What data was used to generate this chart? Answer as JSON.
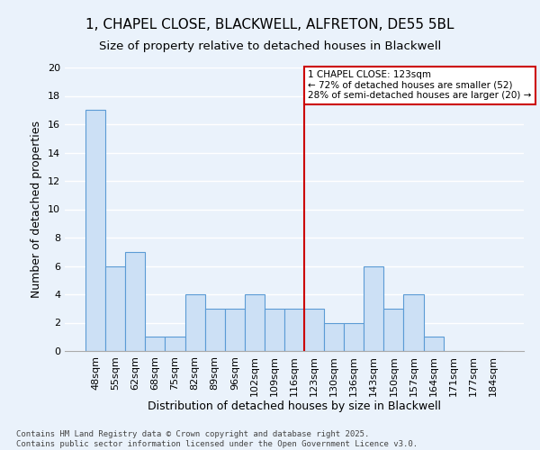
{
  "title_line1": "1, CHAPEL CLOSE, BLACKWELL, ALFRETON, DE55 5BL",
  "title_line2": "Size of property relative to detached houses in Blackwell",
  "xlabel": "Distribution of detached houses by size in Blackwell",
  "ylabel": "Number of detached properties",
  "categories": [
    "48sqm",
    "55sqm",
    "62sqm",
    "68sqm",
    "75sqm",
    "82sqm",
    "89sqm",
    "96sqm",
    "102sqm",
    "109sqm",
    "116sqm",
    "123sqm",
    "130sqm",
    "136sqm",
    "143sqm",
    "150sqm",
    "157sqm",
    "164sqm",
    "171sqm",
    "177sqm",
    "184sqm"
  ],
  "values": [
    17,
    6,
    7,
    1,
    1,
    4,
    3,
    3,
    4,
    3,
    3,
    3,
    2,
    2,
    6,
    3,
    4,
    1,
    0,
    0,
    0
  ],
  "bar_color": "#cce0f5",
  "bar_edge_color": "#5b9bd5",
  "vline_index": 11,
  "vline_color": "#cc0000",
  "annotation_title": "1 CHAPEL CLOSE: 123sqm",
  "annotation_line1": "← 72% of detached houses are smaller (52)",
  "annotation_line2": "28% of semi-detached houses are larger (20) →",
  "annotation_box_color": "#cc0000",
  "ylim": [
    0,
    20
  ],
  "yticks": [
    0,
    2,
    4,
    6,
    8,
    10,
    12,
    14,
    16,
    18,
    20
  ],
  "footnote": "Contains HM Land Registry data © Crown copyright and database right 2025.\nContains public sector information licensed under the Open Government Licence v3.0.",
  "bg_color": "#eaf2fb",
  "grid_color": "#ffffff",
  "title_fontsize": 11,
  "subtitle_fontsize": 9.5,
  "label_fontsize": 9,
  "tick_fontsize": 8,
  "annot_fontsize": 7.5,
  "footnote_fontsize": 6.5
}
